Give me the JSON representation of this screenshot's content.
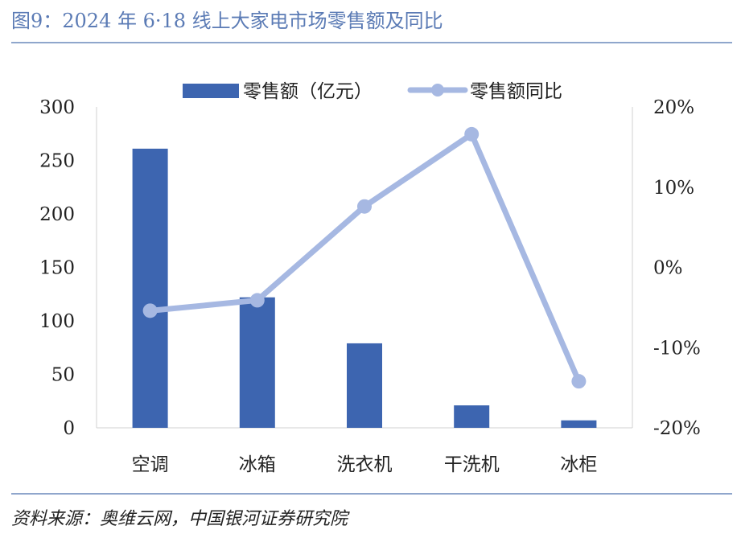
{
  "figure_title": "图9：2024 年 6·18 线上大家电市场零售额及同比",
  "source": "资料来源：奥维云网，中国银河证券研究院",
  "chart_data": {
    "type": "bar",
    "categories": [
      "空调",
      "冰箱",
      "洗衣机",
      "干洗机",
      "冰柜"
    ],
    "series": [
      {
        "name": "零售额（亿元）",
        "type": "bar",
        "axis": "left",
        "values": [
          261,
          122,
          79,
          21,
          7
        ]
      },
      {
        "name": "零售额同比",
        "type": "line",
        "axis": "right",
        "unit": "%",
        "values": [
          -5.4,
          -4.1,
          7.6,
          16.6,
          -14.2
        ]
      }
    ],
    "y_left": {
      "min": 0,
      "max": 300,
      "ticks": [
        "0",
        "50",
        "100",
        "150",
        "200",
        "250",
        "300"
      ]
    },
    "y_right": {
      "min": -20,
      "max": 20,
      "ticks": [
        "-20%",
        "-10%",
        "0%",
        "10%",
        "20%"
      ]
    },
    "legend_position": "top-center",
    "grid": false,
    "colors": {
      "bar": "#3D65B0",
      "line": "#A6B8E2"
    }
  }
}
